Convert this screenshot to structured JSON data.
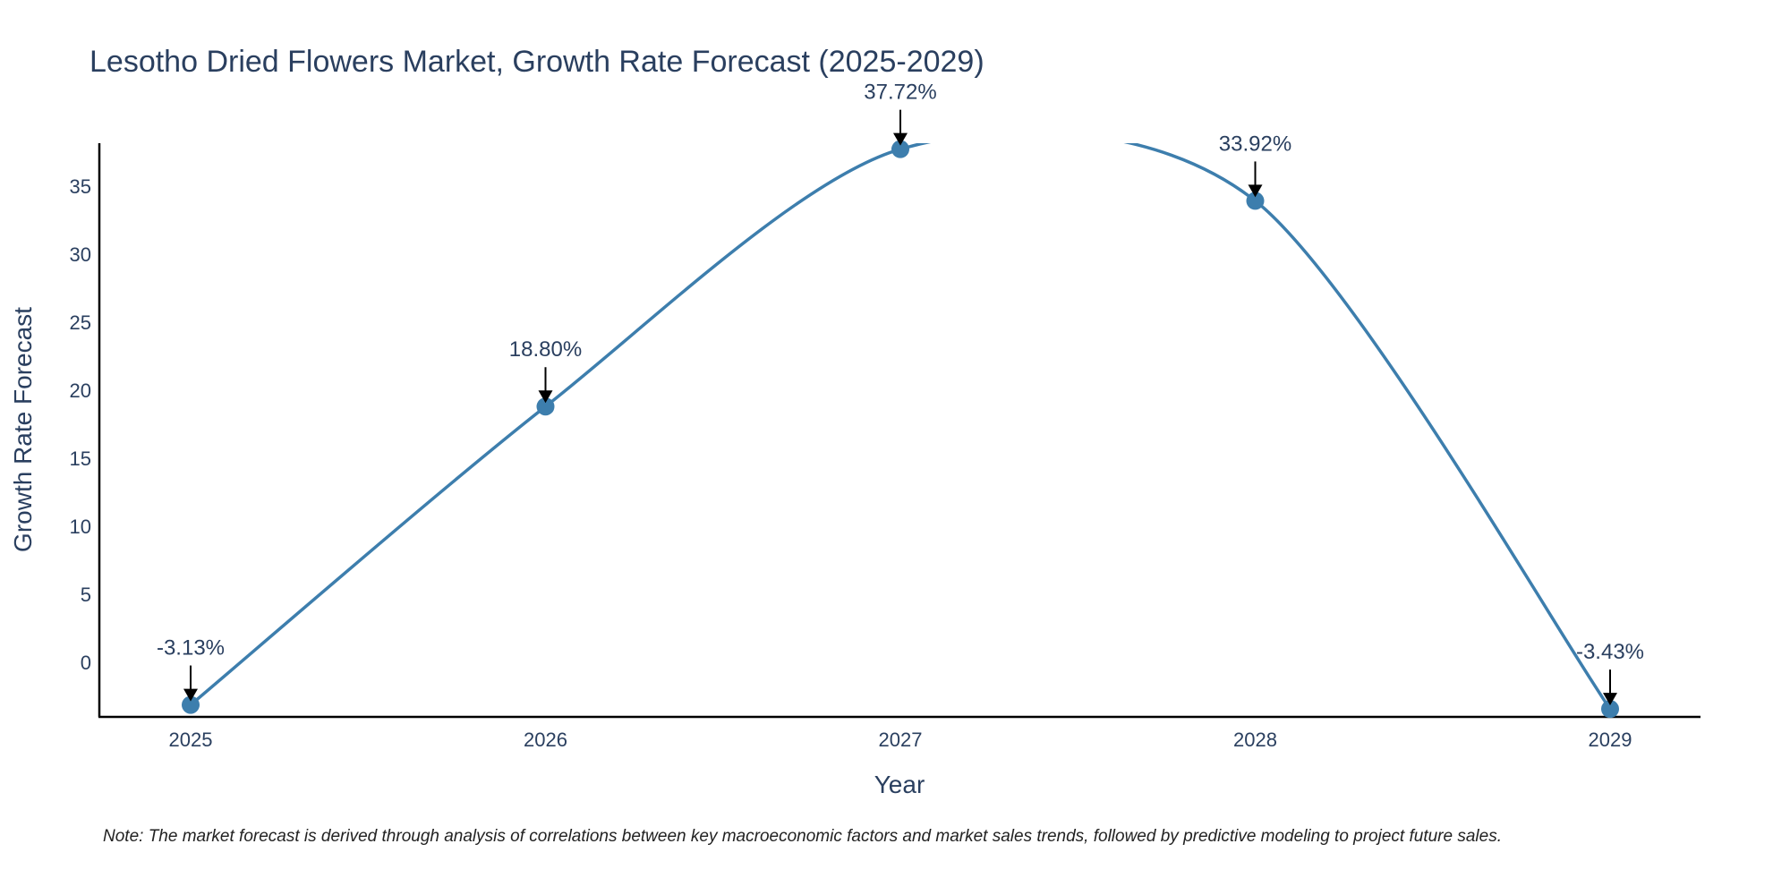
{
  "chart_data": {
    "type": "line",
    "title": "Lesotho Dried Flowers Market, Growth Rate Forecast (2025-2029)",
    "xlabel": "Year",
    "ylabel": "Growth Rate Forecast",
    "categories": [
      "2025",
      "2026",
      "2027",
      "2028",
      "2029"
    ],
    "series": [
      {
        "name": "Growth Rate Forecast",
        "values": [
          -3.13,
          18.8,
          37.72,
          33.92,
          -3.43
        ]
      }
    ],
    "data_labels": [
      "-3.13%",
      "18.80%",
      "37.72%",
      "33.92%",
      "-3.43%"
    ],
    "ylim": [
      -4,
      38
    ],
    "yticks": [
      0,
      5,
      10,
      15,
      20,
      25,
      30,
      35
    ],
    "ytick_labels": [
      "0",
      "5",
      "10",
      "15",
      "20",
      "25",
      "30",
      "35"
    ],
    "grid": false,
    "line_color": "#3d7ead",
    "marker_color": "#3d7ead",
    "arrow_color": "#000000"
  },
  "note": "Note: The market forecast is derived through analysis of correlations between key macroeconomic factors and market sales trends, followed by predictive modeling to project future sales."
}
